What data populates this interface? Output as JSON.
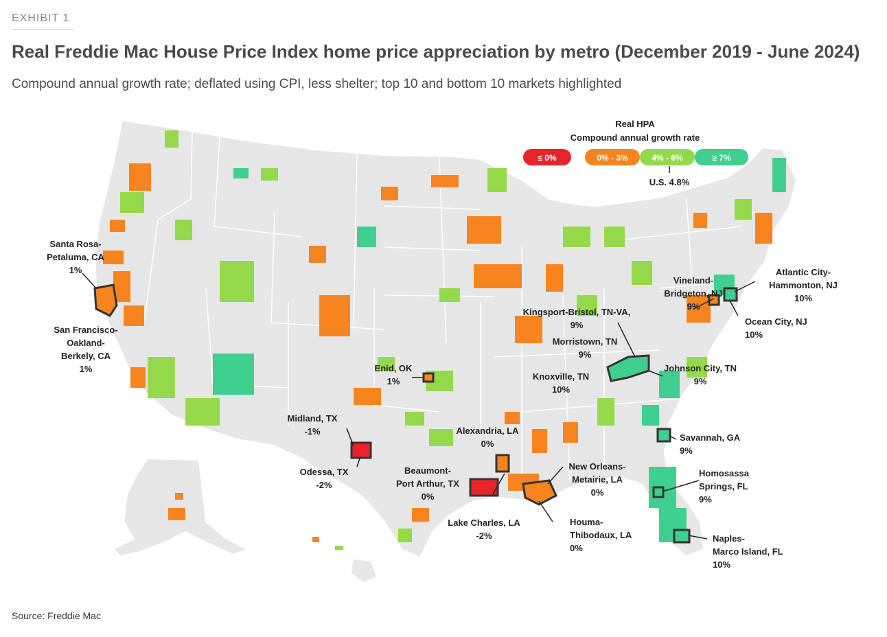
{
  "header": {
    "exhibit": "EXHIBIT 1",
    "title": "Real Freddie Mac House Price Index home price appreciation by metro (December 2019 - June 2024)",
    "subtitle": "Compound annual growth rate; deflated using CPI, less shelter; top 10 and bottom 10 markets highlighted"
  },
  "legend": {
    "title_line1": "Real HPA",
    "title_line2": "Compound annual growth rate",
    "bins": [
      {
        "label": "≤ 0%",
        "color": "#e8242b"
      },
      {
        "label": "0% - 3%",
        "color": "#f7841f"
      },
      {
        "label": "4% - 6%",
        "color": "#93d94a"
      },
      {
        "label": "≥ 7%",
        "color": "#3fcf8e"
      }
    ],
    "us_value": "U.S. 4.8%"
  },
  "colors": {
    "land": "#e6e6e6",
    "border": "#ffffff",
    "highlight_outline": "#333333"
  },
  "callouts": [
    {
      "lines": [
        "Santa Rosa-",
        "Petaluma, CA",
        "1%"
      ]
    },
    {
      "lines": [
        "San Francisco-",
        "Oakland-",
        "Berkely, CA",
        "1%"
      ]
    },
    {
      "lines": [
        "Enid, OK",
        "1%"
      ]
    },
    {
      "lines": [
        "Midland, TX",
        "-1%"
      ]
    },
    {
      "lines": [
        "Odessa, TX",
        "-2%"
      ]
    },
    {
      "lines": [
        "Alexandria, LA",
        "0%"
      ]
    },
    {
      "lines": [
        "Beaumont-",
        "Port Arthur, TX",
        "0%"
      ]
    },
    {
      "lines": [
        "Lake Charles, LA",
        "-2%"
      ]
    },
    {
      "lines": [
        "New Orleans-",
        "Metairie, LA",
        "0%"
      ]
    },
    {
      "lines": [
        "Houma-",
        "Thibodaux, LA",
        "0%"
      ]
    },
    {
      "lines": [
        "Kingsport-Bristol, TN-VA,",
        "9%"
      ]
    },
    {
      "lines": [
        "Morristown, TN",
        "9%"
      ]
    },
    {
      "lines": [
        "Knoxville, TN",
        "10%"
      ]
    },
    {
      "lines": [
        "Johnson City, TN",
        "9%"
      ]
    },
    {
      "lines": [
        "Vineland-",
        "Bridgeton, NJ",
        "9%"
      ]
    },
    {
      "lines": [
        "Atlantic City-",
        "Hammonton, NJ",
        "10%"
      ]
    },
    {
      "lines": [
        "Ocean City, NJ",
        "10%"
      ]
    },
    {
      "lines": [
        "Savannah, GA",
        "9%"
      ]
    },
    {
      "lines": [
        "Homosassa",
        "Springs, FL",
        "9%"
      ]
    },
    {
      "lines": [
        "Naples-",
        "Marco Island, FL",
        "10%"
      ]
    }
  ],
  "source": "Source: Freddie Mac"
}
